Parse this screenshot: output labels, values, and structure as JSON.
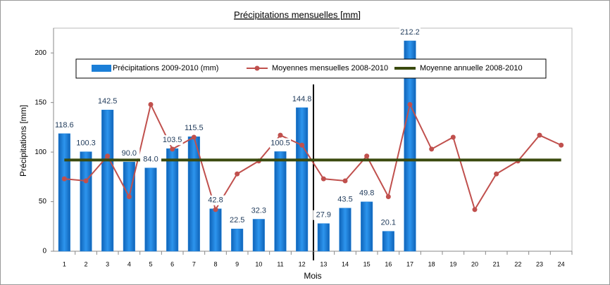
{
  "chart_data": {
    "type": "bar",
    "title": "Précipitations mensuelles [mm]",
    "y_label": "Précipitations [mm]",
    "x_label": "Mois",
    "categories": [
      "1",
      "2",
      "3",
      "4",
      "5",
      "6",
      "7",
      "8",
      "9",
      "10",
      "11",
      "12",
      "13",
      "14",
      "15",
      "16",
      "17",
      "18",
      "19",
      "20",
      "21",
      "22",
      "23",
      "24"
    ],
    "ylim": [
      0,
      225
    ],
    "yticks": [
      0,
      50,
      100,
      150,
      200
    ],
    "grid": false,
    "series": [
      {
        "name": "Précipitations 2009-2010 (mm)",
        "type": "bar",
        "color": "#1b7fd8",
        "values": [
          118.6,
          100.3,
          142.5,
          90.0,
          84.0,
          103.5,
          115.5,
          42.8,
          22.5,
          32.3,
          100.5,
          144.8,
          27.9,
          43.5,
          49.8,
          20.1,
          212.2,
          null,
          null,
          null,
          null,
          null,
          null,
          null
        ],
        "value_labels": [
          "118.6",
          "100.3",
          "142.5",
          "90.0",
          "84.0",
          "103.5",
          "115.5",
          "42.8",
          "22.5",
          "32.3",
          "100.5",
          "144.8",
          "27.9",
          "43.5",
          "49.8",
          "20.1",
          "212.2",
          null,
          null,
          null,
          null,
          null,
          null,
          null
        ]
      },
      {
        "name": "Moyennes mensuelles 2008-2010",
        "type": "line",
        "color": "#c0504d",
        "values": [
          73,
          71,
          96,
          55,
          148,
          103,
          115,
          42,
          78,
          91,
          117,
          107,
          73,
          71,
          96,
          55,
          148,
          103,
          115,
          42,
          78,
          91,
          117,
          107
        ]
      },
      {
        "name": "Moyenne annuelle 2008-2010",
        "type": "line",
        "color": "#3a4a0e",
        "values": [
          92,
          92,
          92,
          92,
          92,
          92,
          92,
          92,
          92,
          92,
          92,
          92,
          92,
          92,
          92,
          92,
          92,
          92,
          92,
          92,
          92,
          92,
          92,
          92
        ]
      }
    ]
  }
}
